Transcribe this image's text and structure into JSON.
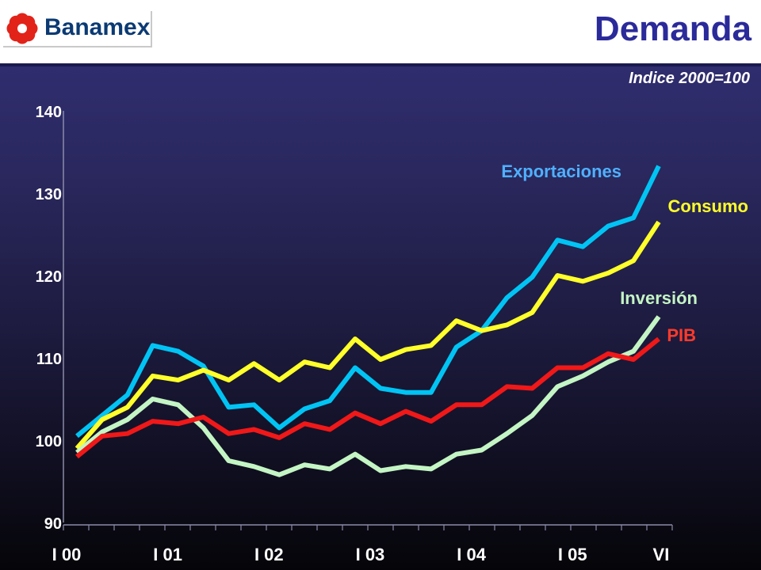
{
  "header": {
    "logo_text": "Banamex",
    "title": "Demanda",
    "subtitle": "Indice 2000=100"
  },
  "colors": {
    "background_top": "#333079",
    "background_bottom": "#050509",
    "title": "#2b2a9a",
    "logo_red": "#e2231a",
    "logo_text": "#0b3a73"
  },
  "chart_data": {
    "type": "line",
    "title": "Demanda",
    "subtitle": "Indice 2000=100",
    "xlabel": "",
    "ylabel": "",
    "ylim": [
      90,
      140
    ],
    "yticks": [
      90,
      100,
      110,
      120,
      130,
      140
    ],
    "grid": false,
    "legend": "inline labels at line ends",
    "x_tick_labels": [
      "I 00",
      "I 01",
      "I 02",
      "I 03",
      "I 04",
      "I 05",
      "VI"
    ],
    "x_tick_label_indices": [
      0,
      4,
      8,
      12,
      16,
      20,
      23.5
    ],
    "n_periods": 24,
    "series": [
      {
        "name": "Exportaciones",
        "color": "#00c4f4",
        "label_color": "#4fb0ff",
        "values": [
          100.5,
          103.0,
          105.5,
          111.5,
          110.8,
          109.0,
          104.0,
          104.3,
          101.5,
          103.8,
          104.8,
          108.8,
          106.3,
          105.8,
          105.8,
          111.3,
          113.3,
          117.3,
          119.8,
          124.3,
          123.5,
          126.0,
          127.0,
          133.3
        ]
      },
      {
        "name": "Consumo",
        "color": "#ffff2a",
        "label_color": "#ffff2a",
        "values": [
          99.0,
          102.5,
          104.0,
          107.8,
          107.3,
          108.5,
          107.3,
          109.3,
          107.3,
          109.5,
          108.8,
          112.3,
          109.8,
          111.0,
          111.5,
          114.5,
          113.3,
          114.0,
          115.5,
          120.0,
          119.3,
          120.3,
          121.8,
          126.5
        ]
      },
      {
        "name": "Inversión",
        "color": "#c4f5c4",
        "label_color": "#c4f5c4",
        "values": [
          98.5,
          101.0,
          102.5,
          105.0,
          104.3,
          101.5,
          97.5,
          96.8,
          95.8,
          97.0,
          96.5,
          98.3,
          96.3,
          96.8,
          96.5,
          98.3,
          98.8,
          100.8,
          103.0,
          106.5,
          107.8,
          109.5,
          110.8,
          115.0
        ]
      },
      {
        "name": "PIB",
        "color": "#f01818",
        "label_color": "#ff3a2a",
        "values": [
          98.0,
          100.5,
          100.8,
          102.3,
          102.0,
          102.8,
          100.8,
          101.3,
          100.3,
          102.0,
          101.3,
          103.3,
          102.0,
          103.5,
          102.3,
          104.3,
          104.3,
          106.5,
          106.3,
          108.8,
          108.8,
          110.5,
          109.8,
          112.3
        ]
      }
    ]
  }
}
